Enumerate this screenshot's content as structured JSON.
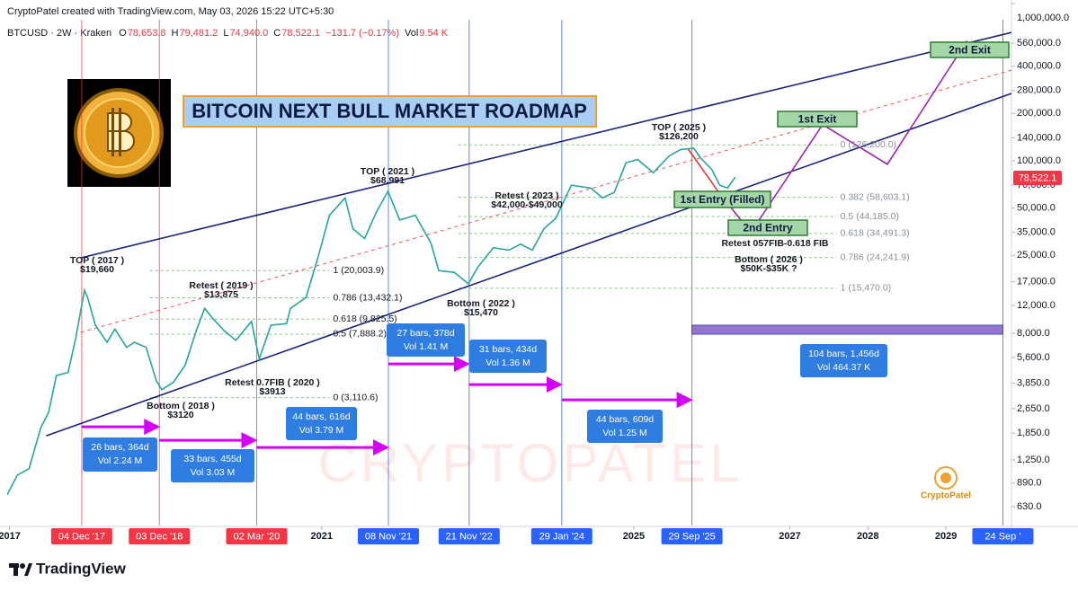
{
  "header": {
    "credit": "CryptoPatel created with TradingView.com, May 03, 2026 15:22 UTC+5:30"
  },
  "symbol": {
    "name": "BTCUSD · 2W · Kraken",
    "ohlc": [
      {
        "key": "O",
        "value": "78,653.8"
      },
      {
        "key": "H",
        "value": "79,481.2"
      },
      {
        "key": "L",
        "value": "74,940.0"
      },
      {
        "key": "C",
        "value": "78,522.1"
      }
    ],
    "change": "−131.7 (−0.17%)",
    "vol_key": "Vol",
    "vol": "9.54 K"
  },
  "chart_data": {
    "type": "line",
    "title": "BITCOIN NEXT BULL MARKET ROADMAP",
    "log_scale": true,
    "color": "#26a69a",
    "x": [
      2016.97,
      2017.1,
      2017.25,
      2017.4,
      2017.5,
      2017.6,
      2017.75,
      2017.85,
      2017.96,
      2018.0,
      2018.1,
      2018.25,
      2018.35,
      2018.5,
      2018.6,
      2018.75,
      2018.88,
      2018.95,
      2019.1,
      2019.25,
      2019.4,
      2019.5,
      2019.6,
      2019.75,
      2019.9,
      2020.1,
      2020.2,
      2020.35,
      2020.55,
      2020.6,
      2020.8,
      2020.95,
      2021.1,
      2021.3,
      2021.4,
      2021.55,
      2021.7,
      2021.85,
      2022.0,
      2022.2,
      2022.4,
      2022.5,
      2022.7,
      2022.88,
      2023.0,
      2023.2,
      2023.4,
      2023.55,
      2023.7,
      2023.85,
      2024.0,
      2024.2,
      2024.45,
      2024.6,
      2024.75,
      2024.9,
      2025.05,
      2025.25,
      2025.45,
      2025.6,
      2025.77,
      2025.85,
      2026.0,
      2026.1,
      2026.2,
      2026.3
    ],
    "values": [
      750,
      1000,
      1100,
      2000,
      2500,
      4300,
      4500,
      7500,
      15000,
      13500,
      9000,
      7000,
      8500,
      6500,
      7000,
      6500,
      4000,
      3500,
      3900,
      5000,
      8500,
      11500,
      10000,
      8300,
      7200,
      9500,
      5500,
      9000,
      9200,
      11500,
      13500,
      24000,
      45000,
      58000,
      37000,
      32000,
      47000,
      64000,
      42000,
      45000,
      30000,
      20000,
      19500,
      16500,
      21000,
      28000,
      27000,
      29500,
      27000,
      37000,
      43000,
      70000,
      67000,
      58000,
      63000,
      97000,
      102000,
      84000,
      107000,
      118000,
      120000,
      105000,
      88000,
      70000,
      67000,
      78522
    ],
    "xlim": [
      2016.97,
      2029.84
    ],
    "xticks": [
      2017,
      2021,
      2025,
      2027,
      2028,
      2029
    ],
    "ylim": [
      478,
      1000000
    ],
    "yticks": [
      {
        "value": 630,
        "label": "630.0"
      },
      {
        "value": 890,
        "label": "890.0"
      },
      {
        "value": 1250,
        "label": "1,250.0"
      },
      {
        "value": 1850,
        "label": "1,850.0"
      },
      {
        "value": 2650,
        "label": "2,650.0"
      },
      {
        "value": 3850,
        "label": "3,850.0"
      },
      {
        "value": 5600,
        "label": "5,600.0"
      },
      {
        "value": 8000,
        "label": "8,000.0"
      },
      {
        "value": 12000,
        "label": "12,000.0"
      },
      {
        "value": 17000,
        "label": "17,000.0"
      },
      {
        "value": 25000,
        "label": "25,000.0"
      },
      {
        "value": 35000,
        "label": "35,000.0"
      },
      {
        "value": 50000,
        "label": "50,000.0"
      },
      {
        "value": 70000,
        "label": "70,000.0"
      },
      {
        "value": 100000,
        "label": "100,000.0"
      },
      {
        "value": 140000,
        "label": "140,000.0"
      },
      {
        "value": 200000,
        "label": "200,000.0"
      },
      {
        "value": 280000,
        "label": "280,000.0"
      },
      {
        "value": 400000,
        "label": "400,000.0"
      },
      {
        "value": 560000,
        "label": "560,000.0"
      },
      {
        "value": 1000000,
        "label": "1,000,000.0"
      }
    ],
    "markers": [
      {
        "value": 2017.925,
        "label": "04 Dec '17",
        "color": "#f23645"
      },
      {
        "value": 2018.92,
        "label": "03 Dec '18",
        "color": "#f23645"
      },
      {
        "value": 2020.167,
        "label": "02 Mar '20",
        "color": "#f23645"
      },
      {
        "value": 2021.855,
        "label": "08 Nov '21",
        "color": "#2962ff"
      },
      {
        "value": 2022.89,
        "label": "21 Nov '22",
        "color": "#2962ff"
      },
      {
        "value": 2024.077,
        "label": "29 Jan '24",
        "color": "#2962ff"
      },
      {
        "value": 2025.745,
        "label": "29 Sep '25",
        "color": "#2962ff"
      },
      {
        "value": 2029.73,
        "label": "24 Sep '",
        "color": "#2962ff"
      }
    ],
    "trendlines": [
      {
        "x": [
          2017.47,
          2029.84
        ],
        "y": [
          1780,
          268000
        ],
        "color": "#1a237e"
      },
      {
        "x": [
          2017.91,
          2029.84
        ],
        "y": [
          24100,
          655000
        ],
        "color": "#1a237e"
      },
      {
        "x": [
          2017.91,
          2029.84
        ],
        "y": [
          8090,
          377000
        ],
        "color": "#ef5350",
        "dashed": true
      },
      {
        "x": [
          2025.69,
          2026.1
        ],
        "y": [
          120000,
          62000
        ],
        "color": "#e53935"
      },
      {
        "x": [
          2026.1,
          2026.5,
          2027.42,
          2028.25,
          2029.27
        ],
        "y": [
          62000,
          35000,
          170000,
          95000,
          580000
        ],
        "color": "#9c27b0"
      }
    ],
    "fibs": [
      {
        "x": [
          2018.8,
          2021.1
        ],
        "color": "#81c784",
        "levels": [
          {
            "value": 20003.9,
            "label": "1 (20,003.9)"
          },
          {
            "value": 13432.1,
            "label": "0.786 (13,432.1)"
          },
          {
            "value": 9825.5,
            "label": "0.618 (9,825.5)"
          },
          {
            "value": 7888.2,
            "label": "0.5 (7,888.2)"
          },
          {
            "value": 3110.6,
            "label": "0 (3,110.6)"
          }
        ]
      },
      {
        "x": [
          2022.75,
          2027.6
        ],
        "color": "#81c784",
        "levels": [
          {
            "value": 126200,
            "label": "0 (126,200.0)"
          },
          {
            "value": 58603.1,
            "label": "0.382 (58,603.1)"
          },
          {
            "value": 44185,
            "label": "0.5 (44,185.0)"
          },
          {
            "value": 34491.3,
            "label": "0.618 (34,491.3)"
          },
          {
            "value": 24241.9,
            "label": "0.786 (24,241.9)"
          },
          {
            "value": 15470,
            "label": "1 (15,470.0)"
          }
        ]
      }
    ],
    "ranges": [
      {
        "x": [
          2017.925,
          2018.92
        ],
        "y": 2030,
        "lines": [
          "26 bars, 364d",
          "Vol 2.24 M"
        ]
      },
      {
        "x": [
          2018.92,
          2020.167
        ],
        "y": 1667,
        "lines": [
          "33 bars, 455d",
          "Vol 3.03 M"
        ]
      },
      {
        "x": [
          2020.167,
          2021.855
        ],
        "y": 1500,
        "lines": [
          "44 bars, 616d",
          "Vol 3.79 M"
        ]
      },
      {
        "x": [
          2021.855,
          2022.89
        ],
        "y": 5100,
        "lines": [
          "27 bars, 378d",
          "Vol 1.41 M"
        ]
      },
      {
        "x": [
          2022.89,
          2024.077
        ],
        "y": 3770,
        "lines": [
          "31 bars, 434d",
          "Vol 1.36 M"
        ]
      },
      {
        "x": [
          2024.077,
          2025.745
        ],
        "y": 3010,
        "lines": [
          "44 bars, 609d",
          "Vol 1.25 M"
        ]
      },
      {
        "x": [
          2025.745,
          2029.73
        ],
        "y": 8420,
        "lines": [
          "104 bars, 1,456d",
          "Vol 464.37 K"
        ],
        "band": true
      }
    ],
    "annotations": [
      {
        "lines": [
          "TOP ( 2017 )",
          "$19,660"
        ]
      },
      {
        "lines": [
          "Retest ( 2019 )",
          "$13,875"
        ]
      },
      {
        "lines": [
          "Bottom ( 2018 )",
          "$3120"
        ]
      },
      {
        "lines": [
          "Retest 0.7FIB ( 2020 )",
          "$3913"
        ]
      },
      {
        "lines": [
          "TOP ( 2021 )",
          "$68,991"
        ]
      },
      {
        "lines": [
          "Retest ( 2023 )",
          "$42,000-$49,000"
        ]
      },
      {
        "lines": [
          "Bottom ( 2022 )",
          "$15,470"
        ]
      },
      {
        "lines": [
          "TOP ( 2025 )",
          "$126,200"
        ]
      },
      {
        "lines": [
          "Retest 057FIB-0.618 FIB"
        ]
      },
      {
        "lines": [
          "Bottom ( 2026 )",
          "$50K-$35K ?"
        ]
      }
    ],
    "boxes": [
      "1st Exit",
      "2nd Exit",
      "1st Entry (Filled)",
      "2nd Entry"
    ]
  },
  "watermark": "CRYPTOPATEL",
  "logo_text": "CryptoPatel",
  "footer": {
    "brand": "TradingView"
  }
}
